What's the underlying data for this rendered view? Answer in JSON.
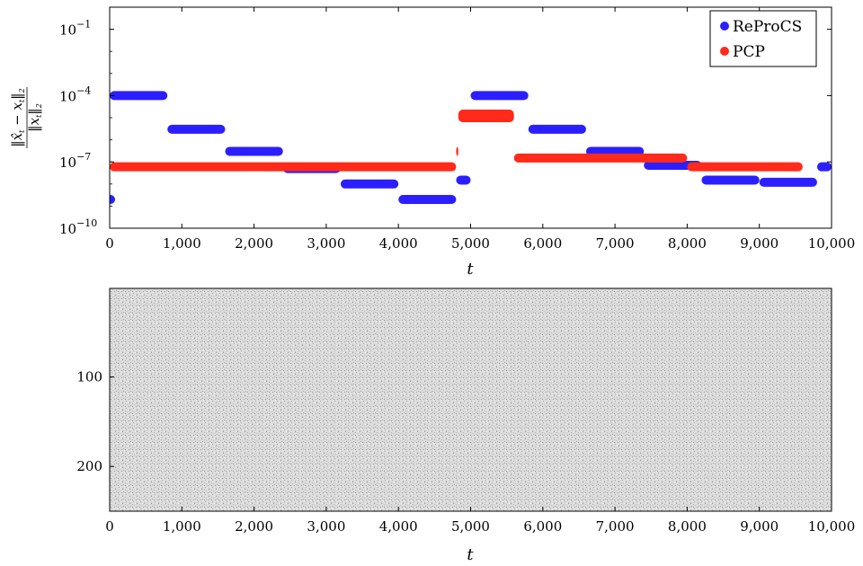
{
  "chart_data": [
    {
      "type": "scatter",
      "y_scale": "log",
      "xlim": [
        0,
        10000
      ],
      "ylim": [
        1e-10,
        1
      ],
      "x_ticks": [
        0,
        1000,
        2000,
        3000,
        4000,
        5000,
        6000,
        7000,
        8000,
        9000,
        10000
      ],
      "x_tick_labels": [
        "0",
        "1,000",
        "2,000",
        "3,000",
        "4,000",
        "5,000",
        "6,000",
        "7,000",
        "8,000",
        "9,000",
        "10,000"
      ],
      "y_ticks": [
        1e-10,
        1e-07,
        0.0001,
        0.1
      ],
      "y_tick_bases": [
        "10",
        "10",
        "10",
        "10"
      ],
      "y_tick_exponents": [
        "−10",
        "−7",
        "−4",
        "−1"
      ],
      "xlabel": "t",
      "ylabel": "||x̂t − xt||2 / ||xt||2",
      "legend": {
        "position": "top-right",
        "entries": [
          "ReProCS",
          "PCP"
        ]
      },
      "series": [
        {
          "name": "ReProCS",
          "color": "#2b1fff",
          "segments": [
            {
              "x_start": 0,
              "x_end": 0,
              "y": 2e-09
            },
            {
              "x_start": 0,
              "x_end": 800,
              "y": 0.0001
            },
            {
              "x_start": 800,
              "x_end": 1600,
              "y": 3e-06
            },
            {
              "x_start": 1600,
              "x_end": 2400,
              "y": 3e-07
            },
            {
              "x_start": 2400,
              "x_end": 3200,
              "y": 5e-08
            },
            {
              "x_start": 3200,
              "x_end": 4000,
              "y": 1e-08
            },
            {
              "x_start": 4000,
              "x_end": 4800,
              "y": 2e-09
            },
            {
              "x_start": 4800,
              "x_end": 5000,
              "y": 1.5e-08
            },
            {
              "x_start": 5000,
              "x_end": 5800,
              "y": 0.0001
            },
            {
              "x_start": 5800,
              "x_end": 6600,
              "y": 3e-06
            },
            {
              "x_start": 6600,
              "x_end": 7400,
              "y": 3e-07
            },
            {
              "x_start": 7400,
              "x_end": 8200,
              "y": 7e-08
            },
            {
              "x_start": 8200,
              "x_end": 9000,
              "y": 1.5e-08
            },
            {
              "x_start": 9000,
              "x_end": 9800,
              "y": 1.2e-08
            },
            {
              "x_start": 9800,
              "x_end": 10000,
              "y": 6e-08
            }
          ]
        },
        {
          "name": "PCP",
          "color": "#ff2a1a",
          "segments": [
            {
              "x_start": 0,
              "x_end": 4800,
              "y": 6e-08
            },
            {
              "x_start": 4800,
              "x_end": 4830,
              "y": 3e-07
            },
            {
              "x_start": 4830,
              "x_end": 5600,
              "y": 1.2e-05
            },
            {
              "x_start": 5600,
              "x_end": 8000,
              "y": 1.5e-07
            },
            {
              "x_start": 8000,
              "x_end": 9600,
              "y": 6e-08
            }
          ]
        }
      ]
    },
    {
      "type": "heatmap",
      "xlim": [
        0,
        10000
      ],
      "ylim": [
        1,
        250
      ],
      "x_ticks": [
        0,
        1000,
        2000,
        3000,
        4000,
        5000,
        6000,
        7000,
        8000,
        9000,
        10000
      ],
      "x_tick_labels": [
        "0",
        "1,000",
        "2,000",
        "3,000",
        "4,000",
        "5,000",
        "6,000",
        "7,000",
        "8,000",
        "9,000",
        "10,000"
      ],
      "y_ticks": [
        100,
        200
      ],
      "y_tick_labels": [
        "100",
        "200"
      ],
      "xlabel": "t",
      "description_colormap": "grayscale noise"
    }
  ]
}
